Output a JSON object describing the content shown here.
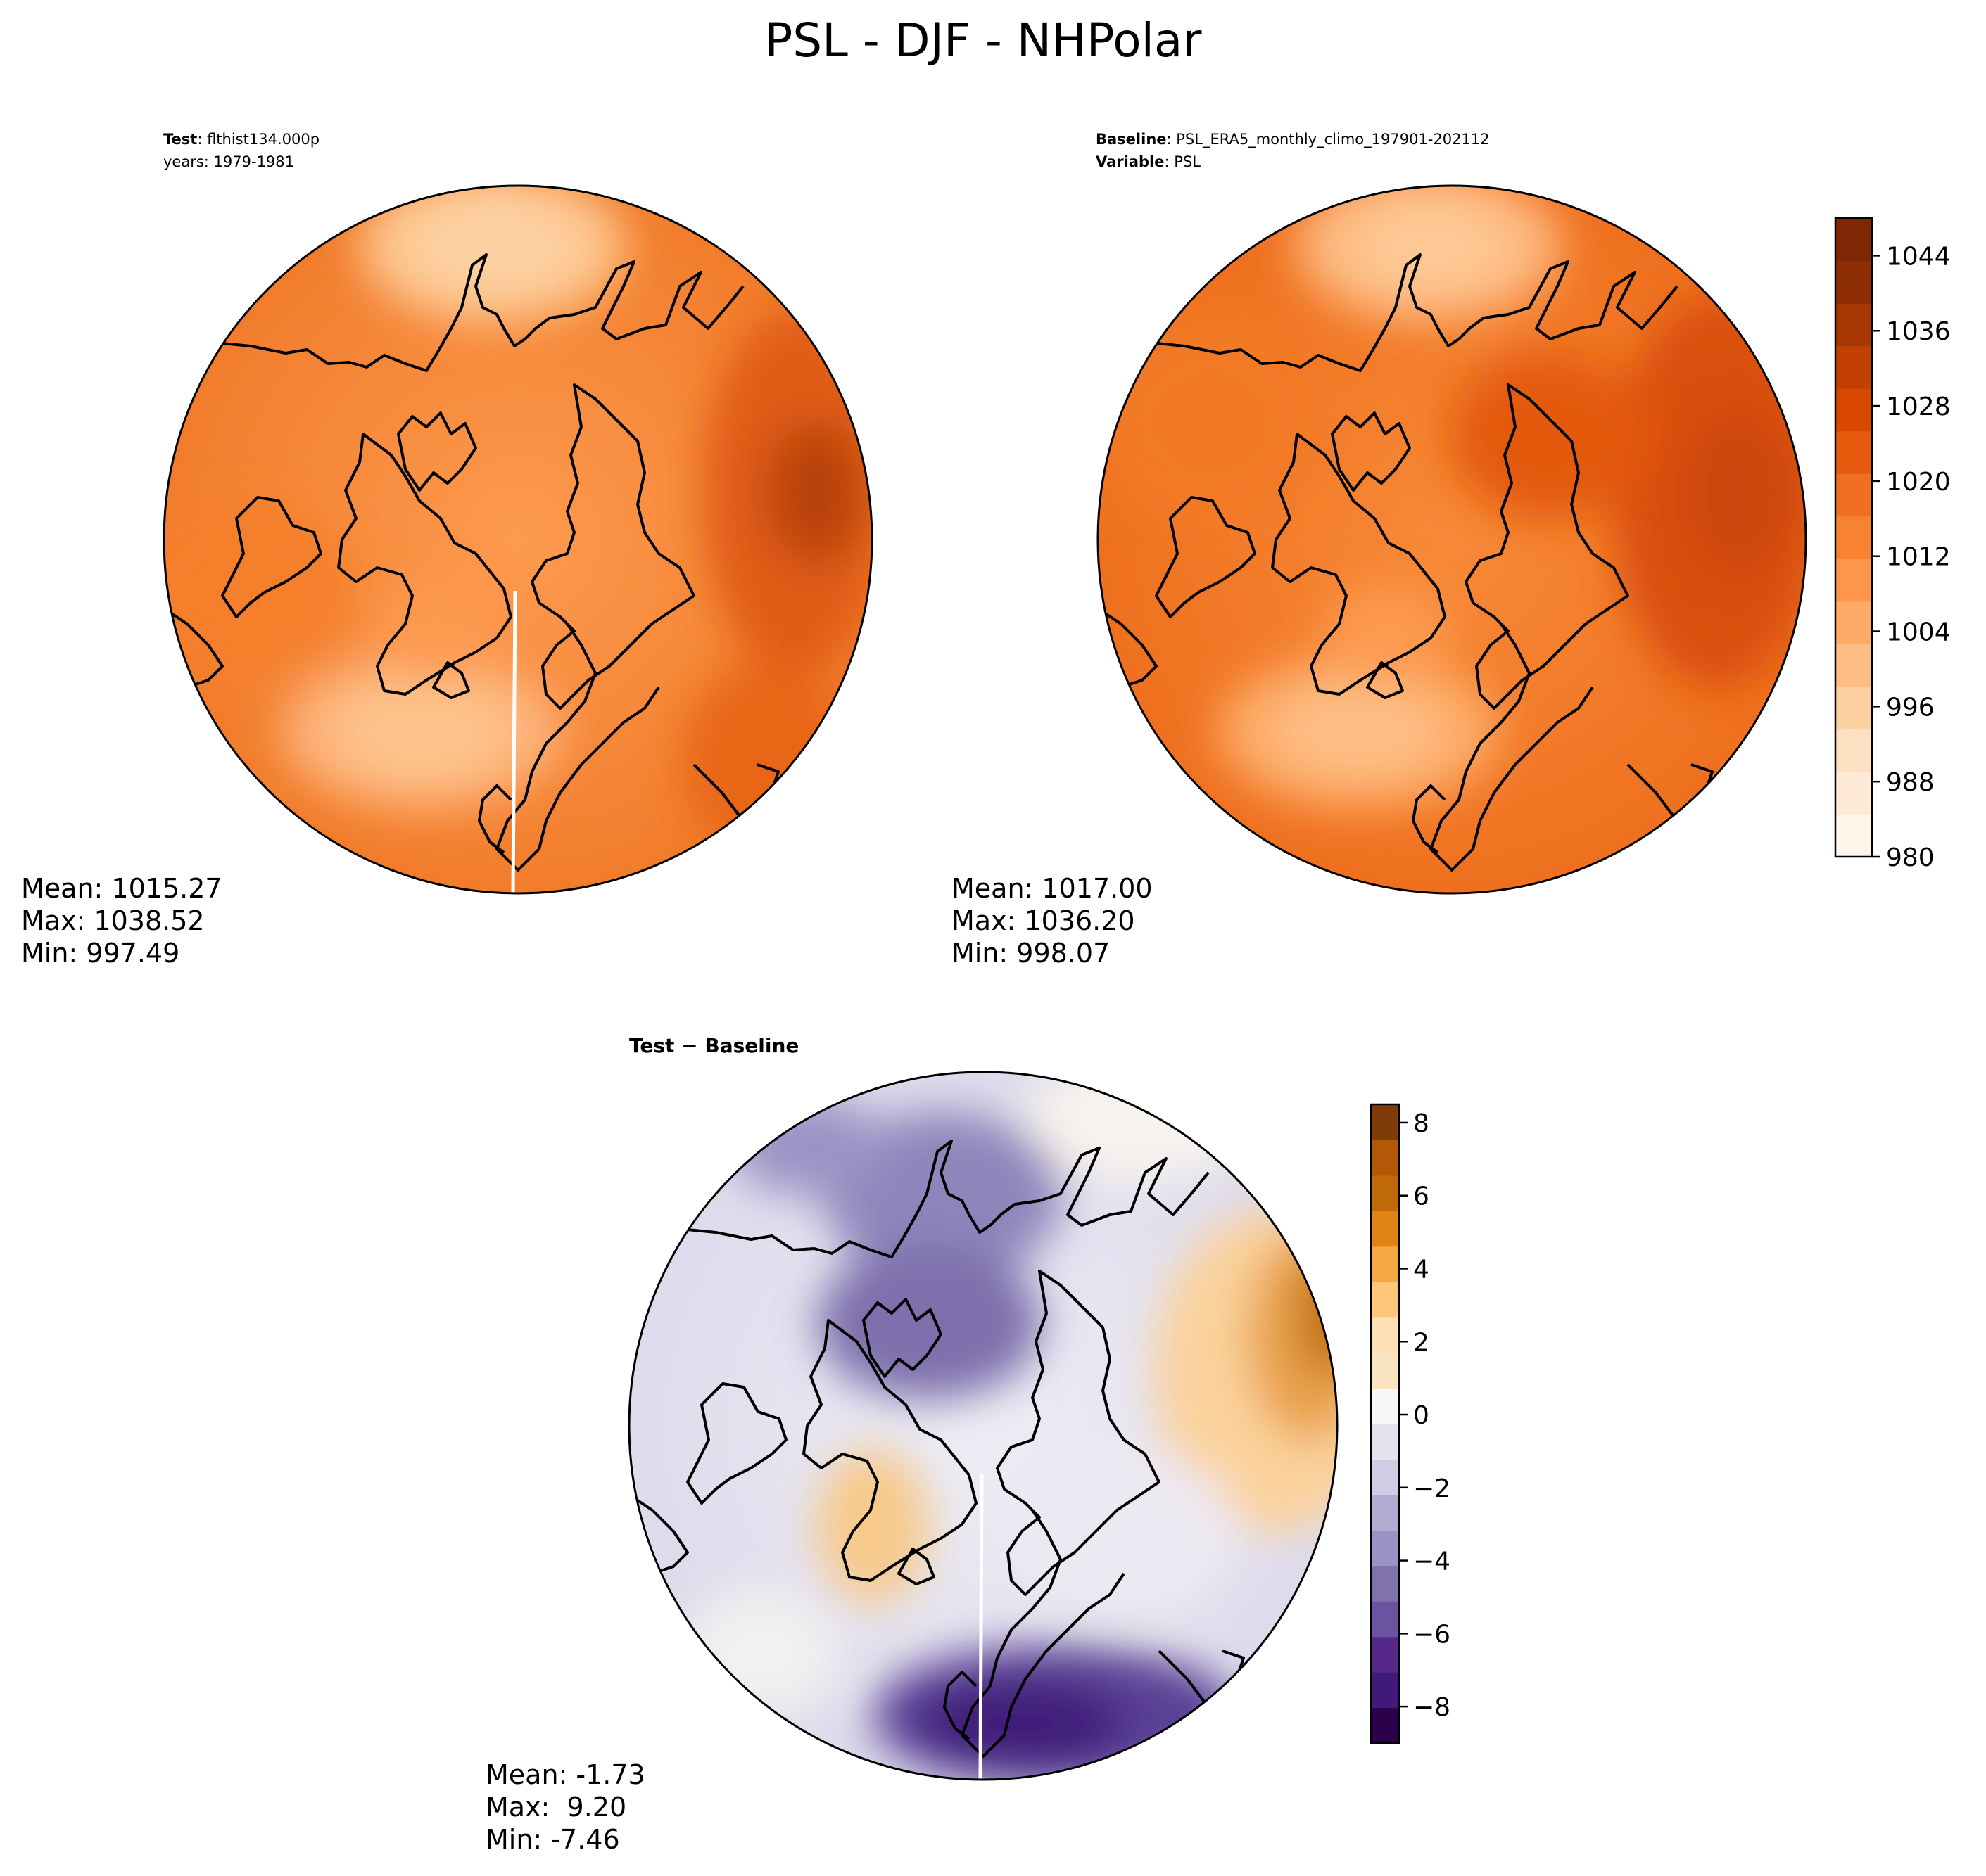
{
  "figure": {
    "title": "PSL - DJF - NHPolar"
  },
  "chart_data": [
    {
      "type": "polar-contour-map",
      "panel": "test",
      "header_lines": [
        {
          "label": "Test",
          "value": ": flthist134.000p"
        },
        {
          "label": "",
          "value": "years: 1979-1981"
        }
      ],
      "stats": {
        "mean": "Mean: 1015.27",
        "max": "Max: 1038.52",
        "min": "Min: 997.49"
      },
      "colormap": "Oranges"
    },
    {
      "type": "polar-contour-map",
      "panel": "baseline",
      "header_lines": [
        {
          "label": "Baseline",
          "value": ": PSL_ERA5_monthly_climo_197901-202112"
        },
        {
          "label": "Variable",
          "value": ": PSL"
        }
      ],
      "stats": {
        "mean": "Mean: 1017.00",
        "max": "Max: 1036.20",
        "min": "Min: 998.07"
      },
      "colormap": "Oranges",
      "colorbar": {
        "range": [
          980,
          1048
        ],
        "ticks": [
          980,
          988,
          996,
          1004,
          1012,
          1020,
          1028,
          1036,
          1044
        ],
        "colors": [
          "#fff5eb",
          "#feead6",
          "#fde0c2",
          "#fdd0a2",
          "#fdbe85",
          "#fdab67",
          "#fd9649",
          "#f78230",
          "#f16f20",
          "#e65a0d",
          "#d94801",
          "#c24002",
          "#a63603",
          "#8c2d04",
          "#7f2704"
        ]
      }
    },
    {
      "type": "polar-contour-map",
      "panel": "difference",
      "title": {
        "left": "Test",
        "op": "−",
        "right": "Baseline"
      },
      "stats": {
        "mean": "Mean: -1.73",
        "max": "Max:  9.20",
        "min": "Min: -7.46"
      },
      "colormap": "PuOr_r",
      "colorbar": {
        "range": [
          -9,
          8.5
        ],
        "ticks": [
          -8,
          -6,
          -4,
          -2,
          0,
          2,
          4,
          6,
          8
        ],
        "tick_labels": [
          "−8",
          "−6",
          "−4",
          "−2",
          "0",
          "2",
          "4",
          "6",
          "8"
        ],
        "colors": [
          "#2d004b",
          "#3f1a7a",
          "#542788",
          "#6a53a0",
          "#8073ac",
          "#9a92c3",
          "#b2abd2",
          "#cfcce3",
          "#e4e2ef",
          "#f7f7f7",
          "#fbe4c2",
          "#fee0b6",
          "#fdc679",
          "#f6a744",
          "#e08214",
          "#c06a0c",
          "#b35806",
          "#7f3b08"
        ]
      }
    }
  ]
}
